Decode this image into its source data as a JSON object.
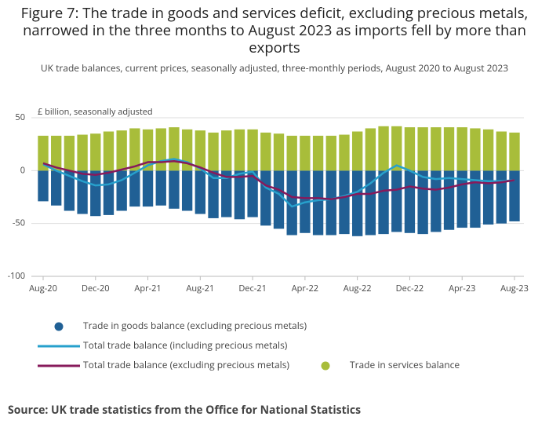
{
  "chart_data": {
    "type": "bar",
    "title": "Figure 7: The trade in goods and services deficit, excluding precious metals, narrowed in the three months to August 2023 as imports fell by more than exports",
    "subtitle": "UK trade balances, current prices, seasonally adjusted, three-monthly periods, August 2020 to August 2023",
    "y_label": "£ billion, seasonally adjusted",
    "source": "Source: UK trade statistics from the Office for National Statistics",
    "categories": [
      "Aug-20",
      null,
      null,
      null,
      "Dec-20",
      null,
      null,
      null,
      "Apr-21",
      null,
      null,
      null,
      "Aug-21",
      null,
      null,
      null,
      "Dec-21",
      null,
      null,
      null,
      "Apr-22",
      null,
      null,
      null,
      "Aug-22",
      null,
      null,
      null,
      "Dec-22",
      null,
      null,
      null,
      "Apr-23",
      null,
      null,
      null,
      "Aug-23"
    ],
    "ylim": [
      -100,
      50
    ],
    "yticks": [
      50,
      0,
      -50,
      -100
    ],
    "grid": true,
    "series": [
      {
        "name": "Trade in goods balance (excluding precious metals)",
        "type": "bar",
        "color": "#206095",
        "values": [
          -29,
          -33,
          -38,
          -41,
          -43,
          -42,
          -38,
          -34,
          -34,
          -33,
          -36,
          -38,
          -41,
          -45,
          -44,
          -46,
          -44,
          -52,
          -55,
          -61,
          -59,
          -61,
          -61,
          -60,
          -62,
          -61,
          -60,
          -58,
          -59,
          -60,
          -58,
          -56,
          -54,
          -54,
          -51,
          -50,
          -48
        ]
      },
      {
        "name": "Total trade balance (including precious metals)",
        "type": "line",
        "color": "#27a0cc",
        "values": [
          6,
          0,
          -5,
          -10,
          -14,
          -13,
          -9,
          -2,
          5,
          9,
          11,
          8,
          2,
          -7,
          -7,
          -3,
          -1,
          -16,
          -22,
          -34,
          -30,
          -28,
          -27,
          -24,
          -20,
          -12,
          -2,
          5,
          0,
          -6,
          -8,
          -7,
          -8,
          -9,
          -10,
          -10,
          -9
        ]
      },
      {
        "name": "Total trade balance (excluding precious metals)",
        "type": "line",
        "color": "#871a5b",
        "values": [
          7,
          3,
          0,
          -3,
          -4,
          -2,
          1,
          4,
          8,
          8,
          9,
          7,
          3,
          -2,
          -6,
          -6,
          -5,
          -14,
          -18,
          -25,
          -26,
          -26,
          -27,
          -25,
          -22,
          -22,
          -19,
          -18,
          -15,
          -17,
          -18,
          -16,
          -13,
          -11,
          -12,
          -11,
          -9
        ]
      },
      {
        "name": "Trade in services balance",
        "type": "bar",
        "color": "#a8bd3a",
        "values": [
          33,
          33,
          33,
          34,
          35,
          37,
          38,
          40,
          39,
          40,
          41,
          39,
          38,
          36,
          38,
          39,
          39,
          36,
          35,
          33,
          33,
          33,
          33,
          34,
          37,
          40,
          42,
          42,
          41,
          41,
          41,
          41,
          41,
          40,
          39,
          37,
          36
        ]
      }
    ]
  }
}
